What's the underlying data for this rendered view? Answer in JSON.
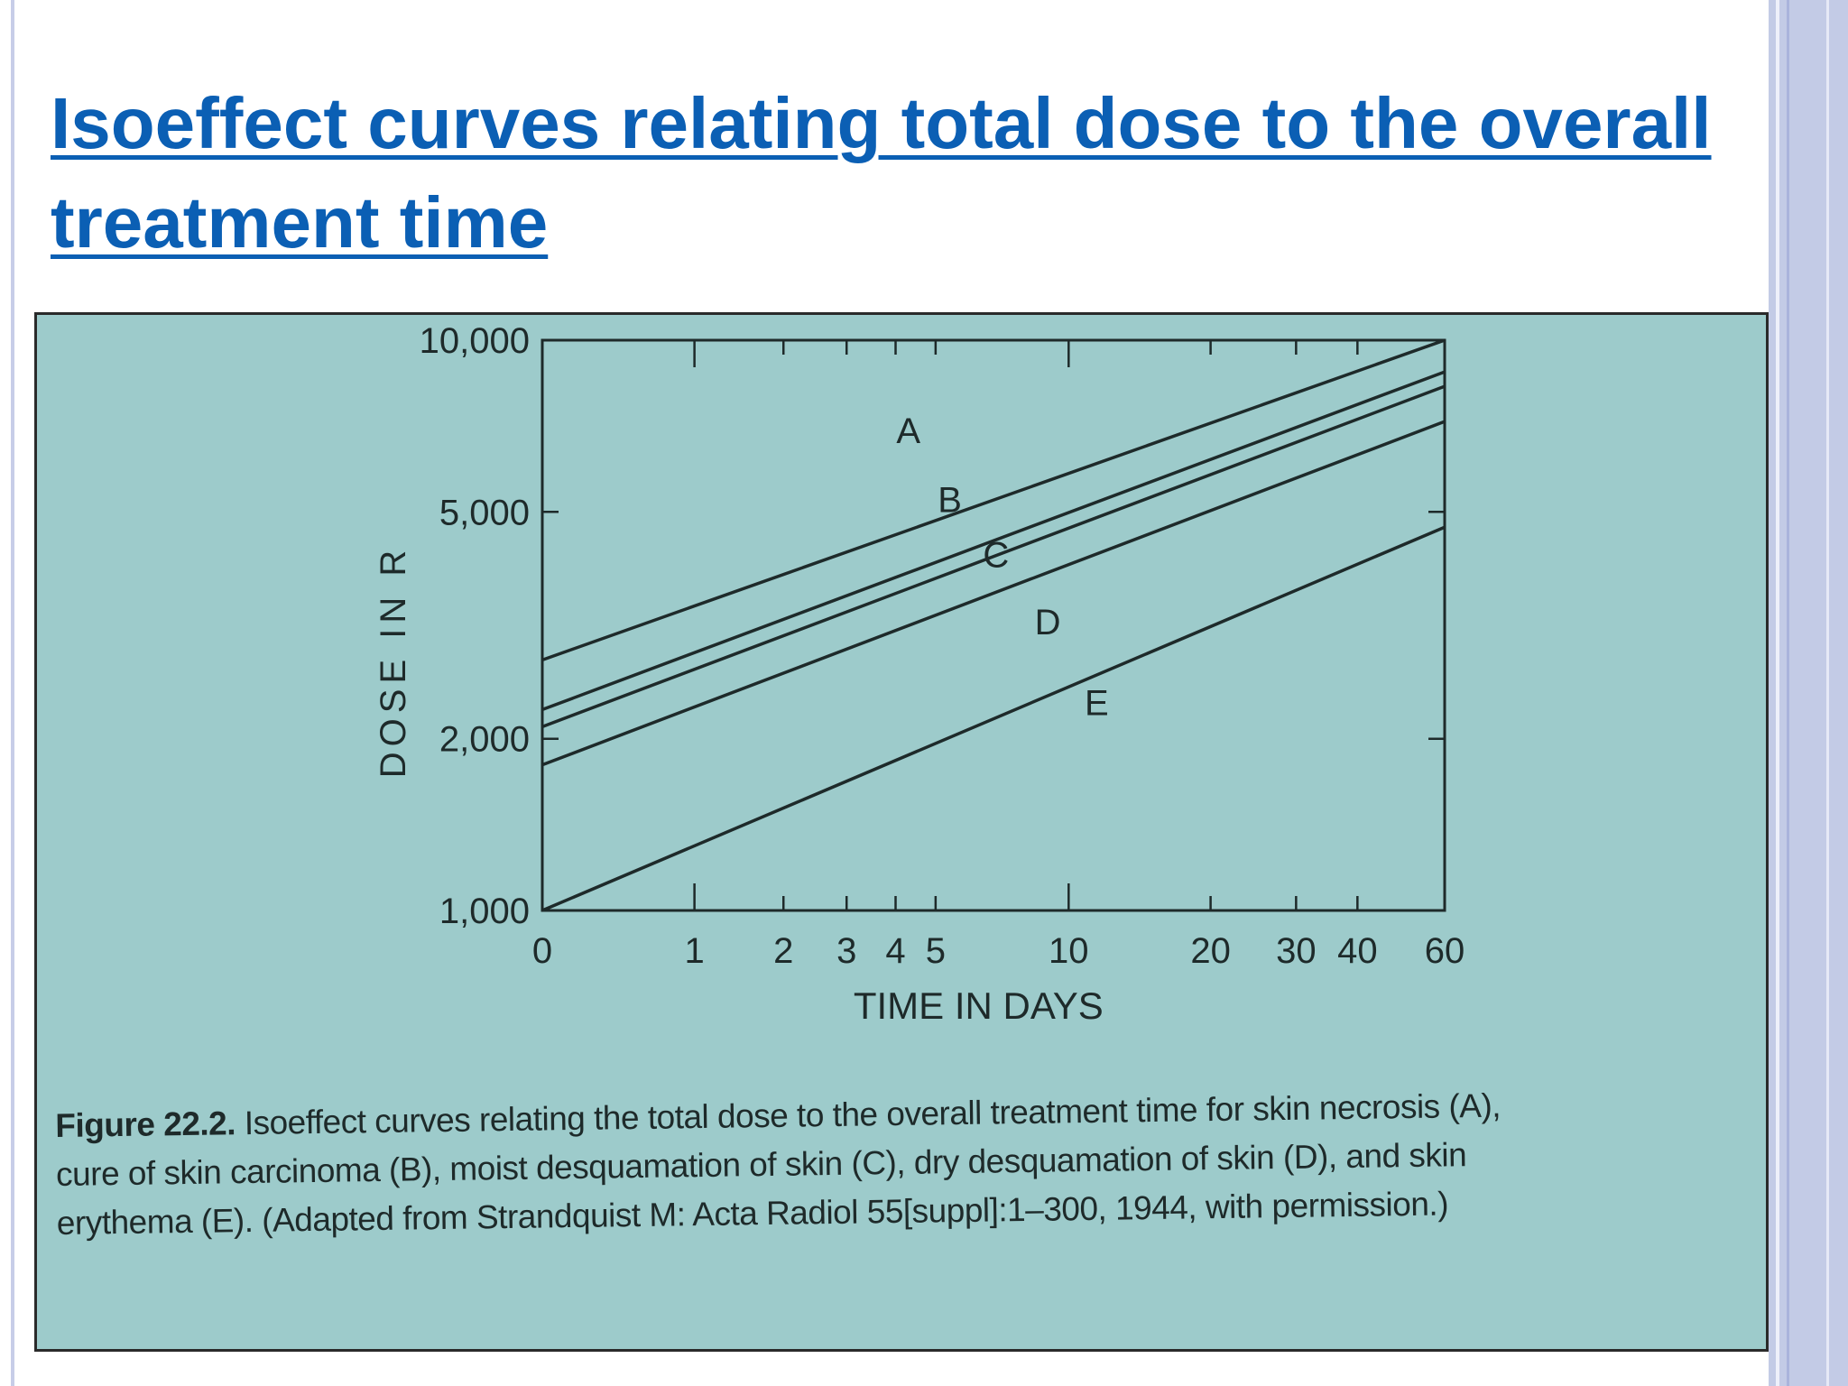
{
  "slide": {
    "title": "Isoeffect curves relating total dose to the overall treatment time"
  },
  "colors": {
    "title": "#0b5fb4",
    "figure_background": "#9dcbcb",
    "ink": "#1e2a2a"
  },
  "chart_data": {
    "type": "line",
    "title": "",
    "xlabel": "TIME IN DAYS",
    "ylabel": "DOSE IN R",
    "x_scale": "log (days + 1)",
    "y_scale": "log",
    "xlim": [
      0,
      60
    ],
    "ylim": [
      1000,
      10000
    ],
    "x_ticks": [
      {
        "value": 0,
        "label": "0"
      },
      {
        "value": 1,
        "label": "1"
      },
      {
        "value": 2,
        "label": "2"
      },
      {
        "value": 3,
        "label": "3"
      },
      {
        "value": 4,
        "label": "4"
      },
      {
        "value": 5,
        "label": "5"
      },
      {
        "value": 10,
        "label": "10"
      },
      {
        "value": 20,
        "label": "20"
      },
      {
        "value": 30,
        "label": "30"
      },
      {
        "value": 40,
        "label": "40"
      },
      {
        "value": 60,
        "label": "60"
      }
    ],
    "y_ticks": [
      {
        "value": 1000,
        "label": "1,000"
      },
      {
        "value": 2000,
        "label": "2,000"
      },
      {
        "value": 5000,
        "label": "5,000"
      },
      {
        "value": 10000,
        "label": "10,000"
      }
    ],
    "x": [
      0,
      60
    ],
    "series": [
      {
        "name": "A",
        "values": [
          2750,
          10000
        ]
      },
      {
        "name": "B",
        "values": [
          2250,
          8800
        ]
      },
      {
        "name": "C",
        "values": [
          2100,
          8300
        ]
      },
      {
        "name": "D",
        "values": [
          1800,
          7200
        ]
      },
      {
        "name": "E",
        "values": [
          1000,
          4700
        ]
      }
    ],
    "series_label_positions": [
      {
        "name": "A",
        "x": 4.3,
        "y": 6600
      },
      {
        "name": "B",
        "x": 5.4,
        "y": 5000
      },
      {
        "name": "C",
        "x": 6.9,
        "y": 4000
      },
      {
        "name": "D",
        "x": 9.0,
        "y": 3050
      },
      {
        "name": "E",
        "x": 11.5,
        "y": 2200
      }
    ],
    "grid": false,
    "legend": "none"
  },
  "caption": {
    "label": "Figure 22.2.",
    "lines": [
      "Isoeffect curves relating the total dose to the overall treatment time for skin necrosis (A),",
      "cure of skin carcinoma (B), moist desquamation of skin (C), dry desquamation of skin (D), and skin",
      "erythema (E). (Adapted from Strandquist M: Acta Radiol 55[suppl]:1–300, 1944, with permission.)"
    ]
  }
}
